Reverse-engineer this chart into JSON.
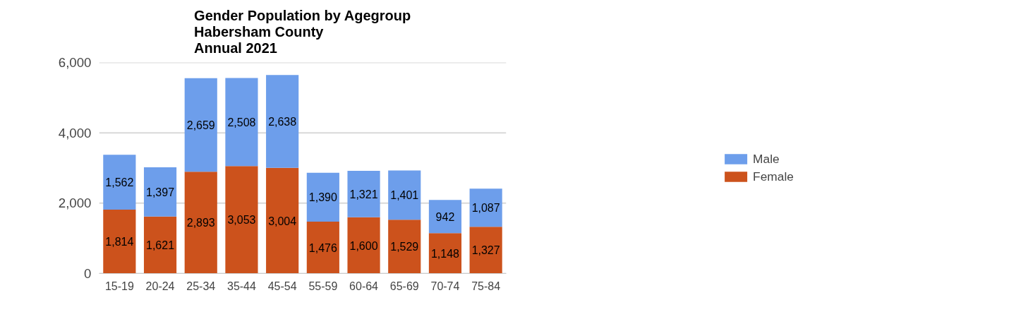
{
  "chart_data": {
    "type": "bar",
    "title": "Gender Population by Agegroup\nHabersham County\nAnnual 2021",
    "categories": [
      "15-19",
      "20-24",
      "25-34",
      "35-44",
      "45-54",
      "55-59",
      "60-64",
      "65-69",
      "70-74",
      "75-84"
    ],
    "stacked": true,
    "series": [
      {
        "name": "Female",
        "color": "#cc521c",
        "values": [
          1814,
          1621,
          2893,
          3053,
          3004,
          1476,
          1600,
          1529,
          1148,
          1327
        ],
        "value_labels": [
          "1,814",
          "1,621",
          "2,893",
          "3,053",
          "3,004",
          "1,476",
          "1,600",
          "1,529",
          "1,148",
          "1,327"
        ]
      },
      {
        "name": "Male",
        "color": "#6d9eeb",
        "values": [
          1562,
          1397,
          2659,
          2508,
          2638,
          1390,
          1321,
          1401,
          942,
          1087
        ],
        "value_labels": [
          "1,562",
          "1,397",
          "2,659",
          "2,508",
          "2,638",
          "1,390",
          "1,321",
          "1,401",
          "942",
          "1,087"
        ]
      }
    ],
    "ylim": [
      0,
      6000
    ],
    "yticks": [
      0,
      {
        "value": 2000,
        "label": "2,000"
      },
      {
        "value": 4000,
        "label": "4,000"
      },
      {
        "value": 6000,
        "label": "6,000"
      }
    ],
    "grid": "y",
    "legend": "right"
  }
}
